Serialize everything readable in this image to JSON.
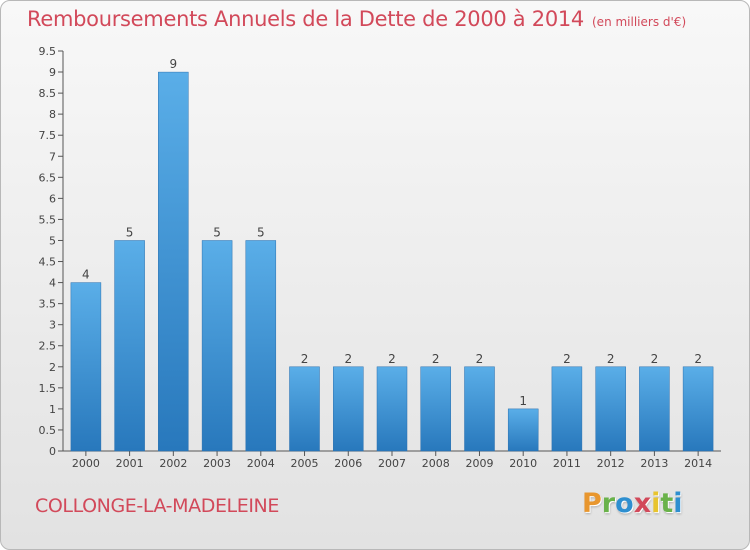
{
  "title": "Remboursements Annuels de la Dette de 2000 à 2014",
  "unit": "(en milliers d'€)",
  "commune": "COLLONGE-LA-MADELEINE",
  "logo": {
    "letters": [
      {
        "char": "P",
        "color": "#e8962e"
      },
      {
        "char": "r",
        "color": "#6ab24a"
      },
      {
        "char": "o",
        "color": "#2e8fd0"
      },
      {
        "char": "x",
        "color": "#d2495a"
      },
      {
        "char": "i",
        "color": "#e8c42e"
      },
      {
        "char": "t",
        "color": "#6ab24a"
      },
      {
        "char": "i",
        "color": "#2e8fd0"
      }
    ]
  },
  "colors": {
    "title": "#d2495a",
    "bar_top": "#5aaee8",
    "bar_bottom": "#2878bc",
    "axis": "#555555"
  },
  "chart_data": {
    "type": "bar",
    "title": "Remboursements Annuels de la Dette de 2000 à 2014",
    "xlabel": "",
    "ylabel": "",
    "categories": [
      "2000",
      "2001",
      "2002",
      "2003",
      "2004",
      "2005",
      "2006",
      "2007",
      "2008",
      "2009",
      "2010",
      "2011",
      "2012",
      "2013",
      "2014"
    ],
    "values": [
      4,
      5,
      9,
      5,
      5,
      2,
      2,
      2,
      2,
      2,
      1,
      2,
      2,
      2,
      2
    ],
    "data_labels": [
      "4",
      "5",
      "9",
      "5",
      "5",
      "2",
      "2",
      "2",
      "2",
      "2",
      "1",
      "2",
      "2",
      "2",
      "2"
    ],
    "ylim": [
      0,
      9.5
    ],
    "yticks": [
      "0",
      "0.5",
      "1",
      "1.5",
      "2",
      "2.5",
      "3",
      "3.5",
      "4",
      "4.5",
      "5",
      "5.5",
      "6",
      "6.5",
      "7",
      "7.5",
      "8",
      "8.5",
      "9",
      "9.5"
    ],
    "grid": false,
    "legend": "none"
  }
}
